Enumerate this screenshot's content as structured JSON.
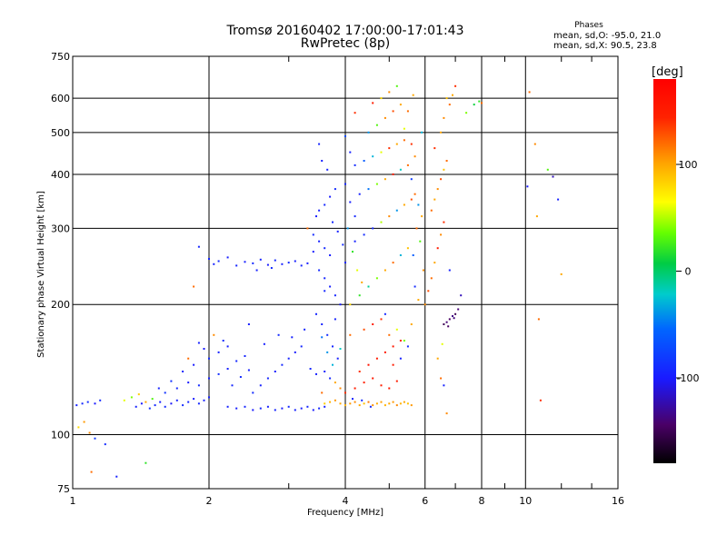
{
  "header": {
    "title_line1": "Tromsø 20160402 17:00:00-17:01:43",
    "title_line2": "RwPretec (8p)"
  },
  "phases_box": {
    "heading": "Phases",
    "o_stats": "mean, sd,O: -95.0, 21.0",
    "x_stats": "mean, sd,X:  90.5, 23.8"
  },
  "colorbar": {
    "unit_label": "[deg]",
    "ticks": [
      {
        "value": 100,
        "label": "100"
      },
      {
        "value": 0,
        "label": "0"
      },
      {
        "value": -100,
        "label": "-100"
      }
    ],
    "range": [
      -180,
      180
    ]
  },
  "chart_data": {
    "type": "scatter",
    "title": "Tromsø 20160402 17:00:00-17:01:43",
    "subtitle": "RwPretec (8p)",
    "xlabel": "Frequency [MHz]",
    "ylabel": "Stationary phase Virtual Height [km]",
    "xscale": "log",
    "yscale": "log",
    "xlim": [
      1,
      16
    ],
    "ylim": [
      75,
      750
    ],
    "x_ticks": [
      {
        "value": 1,
        "label": "1"
      },
      {
        "value": 2,
        "label": "2"
      },
      {
        "value": 4,
        "label": "4"
      },
      {
        "value": 6,
        "label": "6"
      },
      {
        "value": 8,
        "label": "8"
      },
      {
        "value": 10,
        "label": "10"
      },
      {
        "value": 16,
        "label": "16"
      }
    ],
    "x_minor_ticks": [
      3,
      5,
      7,
      9,
      12,
      14
    ],
    "y_ticks": [
      {
        "value": 75,
        "label": "75"
      },
      {
        "value": 100,
        "label": "100"
      },
      {
        "value": 200,
        "label": "200"
      },
      {
        "value": 300,
        "label": "300"
      },
      {
        "value": 400,
        "label": "400"
      },
      {
        "value": 500,
        "label": "500"
      },
      {
        "value": 600,
        "label": "600"
      },
      {
        "value": 750,
        "label": "750"
      }
    ],
    "grid": true,
    "color_variable": "phase [deg]",
    "color_range": [
      -180,
      180
    ],
    "points": [
      [
        1.02,
        117,
        -95
      ],
      [
        1.05,
        118,
        -92
      ],
      [
        1.08,
        119,
        -88
      ],
      [
        1.12,
        118,
        -100
      ],
      [
        1.15,
        120,
        -90
      ],
      [
        1.03,
        104,
        80
      ],
      [
        1.06,
        107,
        105
      ],
      [
        1.09,
        101,
        110
      ],
      [
        1.12,
        98,
        -80
      ],
      [
        1.18,
        95,
        -90
      ],
      [
        1.1,
        82,
        120
      ],
      [
        1.25,
        80,
        -95
      ],
      [
        1.45,
        86,
        20
      ],
      [
        1.3,
        120,
        60
      ],
      [
        1.35,
        122,
        40
      ],
      [
        1.4,
        124,
        85
      ],
      [
        1.45,
        119,
        100
      ],
      [
        1.5,
        121,
        30
      ],
      [
        1.38,
        116,
        -95
      ],
      [
        1.42,
        118,
        -100
      ],
      [
        1.48,
        115,
        -88
      ],
      [
        1.52,
        117,
        -92
      ],
      [
        1.56,
        119,
        -97
      ],
      [
        1.6,
        116,
        -90
      ],
      [
        1.65,
        118,
        -102
      ],
      [
        1.7,
        120,
        -95
      ],
      [
        1.75,
        117,
        -89
      ],
      [
        1.8,
        119,
        -93
      ],
      [
        1.85,
        121,
        -99
      ],
      [
        1.9,
        118,
        -91
      ],
      [
        1.95,
        120,
        -96
      ],
      [
        2.0,
        122,
        -94
      ],
      [
        1.6,
        125,
        -85
      ],
      [
        1.7,
        128,
        -92
      ],
      [
        1.8,
        132,
        -98
      ],
      [
        1.9,
        130,
        -90
      ],
      [
        2.0,
        135,
        -95
      ],
      [
        2.1,
        138,
        -88
      ],
      [
        2.2,
        142,
        -96
      ],
      [
        1.75,
        140,
        -92
      ],
      [
        1.85,
        145,
        -99
      ],
      [
        2.0,
        150,
        -90
      ],
      [
        2.1,
        155,
        -94
      ],
      [
        2.2,
        160,
        -97
      ],
      [
        2.3,
        148,
        -91
      ],
      [
        2.4,
        152,
        -93
      ],
      [
        1.95,
        158,
        -100
      ],
      [
        1.65,
        133,
        -86
      ],
      [
        1.55,
        128,
        -94
      ],
      [
        2.15,
        165,
        -90
      ],
      [
        2.05,
        170,
        110
      ],
      [
        1.8,
        150,
        120
      ],
      [
        1.9,
        163,
        -95
      ],
      [
        2.25,
        130,
        -92
      ],
      [
        2.35,
        136,
        -89
      ],
      [
        2.45,
        141,
        -95
      ],
      [
        2.0,
        255,
        -92
      ],
      [
        2.05,
        248,
        -95
      ],
      [
        2.1,
        252,
        -90
      ],
      [
        2.2,
        257,
        -97
      ],
      [
        2.3,
        246,
        -93
      ],
      [
        2.4,
        251,
        -96
      ],
      [
        2.5,
        249,
        -91
      ],
      [
        2.6,
        254,
        -94
      ],
      [
        2.7,
        247,
        -98
      ],
      [
        2.8,
        253,
        -92
      ],
      [
        2.9,
        248,
        -95
      ],
      [
        3.0,
        250,
        -90
      ],
      [
        3.1,
        252,
        -96
      ],
      [
        3.2,
        246,
        -93
      ],
      [
        3.3,
        249,
        -97
      ],
      [
        2.55,
        240,
        -95
      ],
      [
        2.75,
        243,
        -90
      ],
      [
        1.9,
        272,
        -92
      ],
      [
        1.85,
        220,
        120
      ],
      [
        2.2,
        116,
        -95
      ],
      [
        2.3,
        115,
        -97
      ],
      [
        2.4,
        116,
        -93
      ],
      [
        2.5,
        114,
        -99
      ],
      [
        2.6,
        115,
        -92
      ],
      [
        2.7,
        116,
        -96
      ],
      [
        2.8,
        114,
        -94
      ],
      [
        2.9,
        115,
        -98
      ],
      [
        3.0,
        116,
        -91
      ],
      [
        3.1,
        114,
        -95
      ],
      [
        3.2,
        115,
        -97
      ],
      [
        3.3,
        116,
        -93
      ],
      [
        3.4,
        114,
        -99
      ],
      [
        3.5,
        115,
        -92
      ],
      [
        3.6,
        116,
        -96
      ],
      [
        2.5,
        125,
        -90
      ],
      [
        2.6,
        130,
        -95
      ],
      [
        2.7,
        135,
        -93
      ],
      [
        2.8,
        140,
        -97
      ],
      [
        2.9,
        145,
        -91
      ],
      [
        3.0,
        150,
        -94
      ],
      [
        3.1,
        155,
        -98
      ],
      [
        3.2,
        160,
        -92
      ],
      [
        2.65,
        162,
        -96
      ],
      [
        2.85,
        170,
        -90
      ],
      [
        3.05,
        168,
        -95
      ],
      [
        3.25,
        175,
        -93
      ],
      [
        2.45,
        180,
        -97
      ],
      [
        3.35,
        142,
        -92
      ],
      [
        3.45,
        138,
        -95
      ],
      [
        3.3,
        300,
        120
      ],
      [
        3.4,
        290,
        -90
      ],
      [
        3.5,
        280,
        -95
      ],
      [
        3.6,
        270,
        -92
      ],
      [
        3.7,
        260,
        -97
      ],
      [
        3.5,
        240,
        -91
      ],
      [
        3.6,
        230,
        -94
      ],
      [
        3.7,
        220,
        -96
      ],
      [
        3.8,
        210,
        -93
      ],
      [
        3.9,
        200,
        -98
      ],
      [
        3.45,
        190,
        -92
      ],
      [
        3.55,
        180,
        -95
      ],
      [
        3.65,
        170,
        -90
      ],
      [
        3.75,
        160,
        -93
      ],
      [
        3.85,
        150,
        -97
      ],
      [
        3.6,
        140,
        -94
      ],
      [
        3.7,
        135,
        -91
      ],
      [
        3.8,
        132,
        100
      ],
      [
        3.9,
        128,
        110
      ],
      [
        3.55,
        125,
        120
      ],
      [
        3.6,
        118,
        85
      ],
      [
        3.7,
        119,
        95
      ],
      [
        3.8,
        120,
        105
      ],
      [
        3.9,
        118,
        100
      ],
      [
        3.5,
        330,
        -95
      ],
      [
        3.6,
        340,
        -92
      ],
      [
        3.7,
        355,
        -98
      ],
      [
        3.8,
        370,
        -90
      ],
      [
        3.65,
        410,
        -94
      ],
      [
        3.55,
        430,
        -96
      ],
      [
        3.5,
        470,
        -93
      ],
      [
        3.45,
        320,
        -97
      ],
      [
        3.75,
        310,
        -91
      ],
      [
        3.85,
        295,
        -95
      ],
      [
        3.95,
        275,
        -90
      ],
      [
        4.0,
        250,
        -93
      ],
      [
        3.4,
        265,
        -98
      ],
      [
        3.6,
        215,
        -92
      ],
      [
        3.8,
        185,
        -95
      ],
      [
        3.65,
        155,
        -40
      ],
      [
        3.75,
        145,
        -30
      ],
      [
        3.9,
        158,
        -20
      ],
      [
        3.55,
        168,
        -50
      ],
      [
        4.0,
        117,
        95
      ],
      [
        4.1,
        118,
        105
      ],
      [
        4.2,
        119,
        110
      ],
      [
        4.3,
        117,
        100
      ],
      [
        4.4,
        118,
        90
      ],
      [
        4.5,
        119,
        115
      ],
      [
        4.6,
        117,
        108
      ],
      [
        4.7,
        118,
        98
      ],
      [
        4.8,
        119,
        103
      ],
      [
        4.9,
        117,
        95
      ],
      [
        5.0,
        118,
        100
      ],
      [
        5.1,
        119,
        105
      ],
      [
        5.2,
        117,
        110
      ],
      [
        5.3,
        118,
        95
      ],
      [
        5.4,
        119,
        100
      ],
      [
        5.5,
        118,
        90
      ],
      [
        5.6,
        117,
        105
      ],
      [
        4.15,
        121,
        -95
      ],
      [
        4.35,
        120,
        -90
      ],
      [
        4.55,
        116,
        -92
      ],
      [
        4.0,
        125,
        140
      ],
      [
        4.2,
        128,
        150
      ],
      [
        4.4,
        132,
        145
      ],
      [
        4.6,
        135,
        155
      ],
      [
        4.8,
        130,
        148
      ],
      [
        5.0,
        128,
        152
      ],
      [
        5.2,
        133,
        150
      ],
      [
        4.3,
        140,
        140
      ],
      [
        4.5,
        145,
        160
      ],
      [
        4.7,
        150,
        150
      ],
      [
        4.9,
        155,
        148
      ],
      [
        5.1,
        160,
        155
      ],
      [
        5.3,
        165,
        145
      ],
      [
        4.1,
        170,
        120
      ],
      [
        4.4,
        175,
        130
      ],
      [
        4.6,
        180,
        150
      ],
      [
        4.8,
        185,
        140
      ],
      [
        5.0,
        170,
        120
      ],
      [
        5.2,
        175,
        60
      ],
      [
        5.4,
        165,
        40
      ],
      [
        5.6,
        180,
        100
      ],
      [
        5.5,
        160,
        -90
      ],
      [
        5.3,
        150,
        -95
      ],
      [
        5.1,
        145,
        150
      ],
      [
        4.9,
        190,
        -92
      ],
      [
        4.1,
        200,
        80
      ],
      [
        4.3,
        210,
        20
      ],
      [
        4.5,
        220,
        -10
      ],
      [
        4.7,
        230,
        40
      ],
      [
        4.9,
        240,
        100
      ],
      [
        5.1,
        250,
        120
      ],
      [
        5.3,
        260,
        -30
      ],
      [
        5.5,
        270,
        90
      ],
      [
        4.2,
        280,
        -95
      ],
      [
        4.4,
        290,
        -90
      ],
      [
        4.6,
        300,
        -92
      ],
      [
        4.8,
        310,
        50
      ],
      [
        5.0,
        320,
        110
      ],
      [
        5.2,
        330,
        -40
      ],
      [
        5.4,
        340,
        100
      ],
      [
        5.6,
        350,
        130
      ],
      [
        4.3,
        360,
        -95
      ],
      [
        4.5,
        370,
        -50
      ],
      [
        4.7,
        380,
        40
      ],
      [
        4.9,
        390,
        100
      ],
      [
        5.1,
        400,
        150
      ],
      [
        5.3,
        410,
        -20
      ],
      [
        5.5,
        420,
        120
      ],
      [
        4.4,
        430,
        -60
      ],
      [
        4.6,
        440,
        -30
      ],
      [
        4.8,
        450,
        60
      ],
      [
        5.0,
        460,
        140
      ],
      [
        5.2,
        470,
        100
      ],
      [
        5.4,
        480,
        120
      ],
      [
        4.5,
        500,
        -40
      ],
      [
        4.7,
        520,
        30
      ],
      [
        4.9,
        540,
        110
      ],
      [
        5.1,
        560,
        130
      ],
      [
        5.3,
        580,
        100
      ],
      [
        4.8,
        600,
        80
      ],
      [
        5.0,
        620,
        110
      ],
      [
        5.2,
        640,
        30
      ],
      [
        4.6,
        585,
        150
      ],
      [
        5.4,
        510,
        60
      ],
      [
        4.2,
        555,
        140
      ],
      [
        4.0,
        490,
        -70
      ],
      [
        4.1,
        450,
        -95
      ],
      [
        4.2,
        420,
        -90
      ],
      [
        4.0,
        380,
        -93
      ],
      [
        4.1,
        345,
        -97
      ],
      [
        4.2,
        320,
        -91
      ],
      [
        4.05,
        300,
        -40
      ],
      [
        4.15,
        265,
        20
      ],
      [
        4.25,
        240,
        60
      ],
      [
        4.35,
        225,
        100
      ],
      [
        5.6,
        390,
        -80
      ],
      [
        5.7,
        360,
        120
      ],
      [
        5.8,
        340,
        -40
      ],
      [
        5.9,
        320,
        100
      ],
      [
        5.75,
        300,
        120
      ],
      [
        5.85,
        280,
        30
      ],
      [
        5.65,
        260,
        -60
      ],
      [
        5.95,
        240,
        110
      ],
      [
        5.7,
        220,
        -90
      ],
      [
        5.8,
        205,
        100
      ],
      [
        5.6,
        470,
        140
      ],
      [
        5.7,
        440,
        110
      ],
      [
        5.5,
        560,
        120
      ],
      [
        5.9,
        500,
        -30
      ],
      [
        5.65,
        610,
        100
      ],
      [
        6.0,
        200,
        110
      ],
      [
        6.1,
        215,
        130
      ],
      [
        6.2,
        230,
        120
      ],
      [
        6.3,
        250,
        100
      ],
      [
        6.4,
        270,
        150
      ],
      [
        6.5,
        290,
        110
      ],
      [
        6.6,
        310,
        140
      ],
      [
        6.2,
        330,
        120
      ],
      [
        6.3,
        350,
        100
      ],
      [
        6.4,
        370,
        110
      ],
      [
        6.5,
        390,
        130
      ],
      [
        6.6,
        410,
        90
      ],
      [
        6.7,
        430,
        120
      ],
      [
        6.3,
        460,
        140
      ],
      [
        6.5,
        500,
        100
      ],
      [
        6.6,
        540,
        110
      ],
      [
        6.8,
        580,
        120
      ],
      [
        6.9,
        610,
        100
      ],
      [
        7.0,
        640,
        140
      ],
      [
        6.7,
        600,
        90
      ],
      [
        6.6,
        180,
        -150
      ],
      [
        6.7,
        182,
        -140
      ],
      [
        6.8,
        185,
        -145
      ],
      [
        6.9,
        188,
        -135
      ],
      [
        7.0,
        190,
        -150
      ],
      [
        7.1,
        195,
        -140
      ],
      [
        6.75,
        178,
        -145
      ],
      [
        6.95,
        186,
        -138
      ],
      [
        6.4,
        150,
        100
      ],
      [
        6.5,
        135,
        120
      ],
      [
        6.6,
        130,
        -95
      ],
      [
        6.7,
        112,
        110
      ],
      [
        6.55,
        162,
        60
      ],
      [
        7.2,
        210,
        -120
      ],
      [
        6.8,
        240,
        -95
      ],
      [
        7.7,
        580,
        10
      ],
      [
        7.9,
        590,
        20
      ],
      [
        8.0,
        585,
        120
      ],
      [
        7.4,
        555,
        40
      ],
      [
        10.2,
        620,
        120
      ],
      [
        10.5,
        470,
        110
      ],
      [
        10.6,
        320,
        100
      ],
      [
        10.7,
        185,
        120
      ],
      [
        10.8,
        120,
        140
      ],
      [
        11.5,
        395,
        -120
      ],
      [
        11.8,
        350,
        -95
      ],
      [
        12.0,
        235,
        100
      ],
      [
        10.1,
        375,
        -100
      ],
      [
        11.2,
        410,
        30
      ]
    ]
  }
}
